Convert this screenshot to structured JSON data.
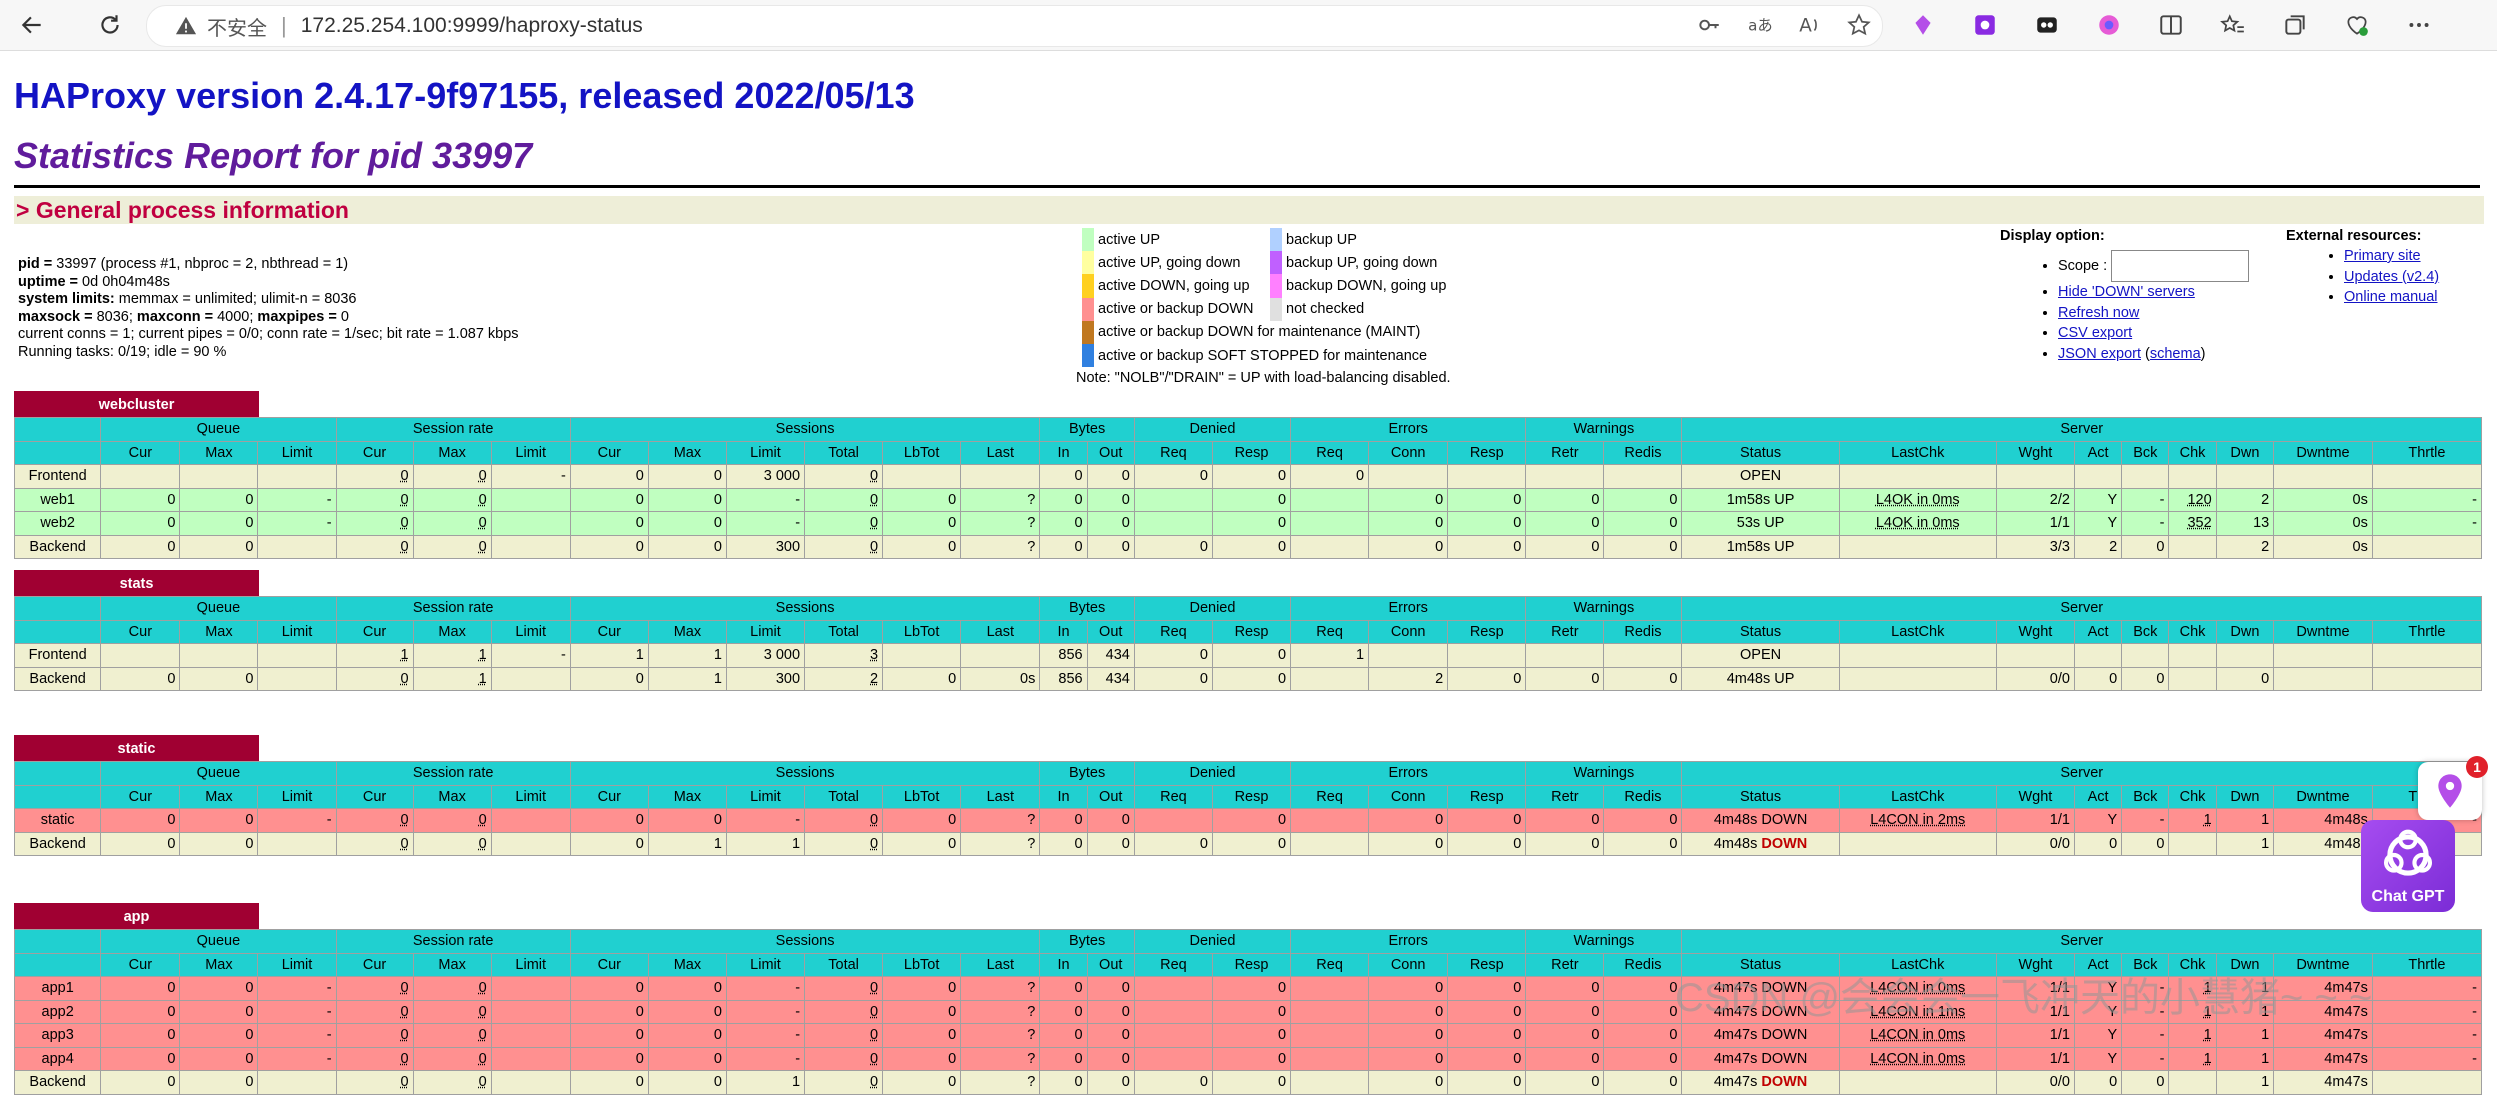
{
  "browser": {
    "insecure_label": "不安全",
    "separator": "|",
    "url": "172.25.254.100:9999/haproxy-status"
  },
  "header": {
    "version": "HAProxy version 2.4.17-9f97155, released 2022/05/13",
    "report": "Statistics Report for pid 33997",
    "section": "> General process information"
  },
  "process_info": [
    {
      "b": "pid =",
      "t": " 33997 (process #1, nbproc = 2, nbthread = 1)"
    },
    {
      "b": "uptime =",
      "t": " 0d 0h04m48s"
    },
    {
      "b": "system limits:",
      "t": " memmax = unlimited; ulimit-n = 8036"
    },
    {
      "b": "maxsock =",
      "t": " 8036; ",
      "b2": "maxconn =",
      "t2": " 4000; ",
      "b3": "maxpipes =",
      "t3": " 0"
    },
    {
      "b": "",
      "t": "current conns = 1; current pipes = 0/0; conn rate = 1/sec; bit rate = 1.087 kbps"
    },
    {
      "b": "",
      "t": "Running tasks: 0/19; idle = 90 %"
    }
  ],
  "legend": {
    "left": [
      {
        "color": "#c0ffc0",
        "label": "active UP"
      },
      {
        "color": "#ffffa0",
        "label": "active UP, going down"
      },
      {
        "color": "#ffd020",
        "label": "active DOWN, going up"
      },
      {
        "color": "#ff9090",
        "label": "active or backup DOWN"
      },
      {
        "color": "#c07820",
        "label": "active or backup DOWN for maintenance (MAINT)"
      },
      {
        "color": "#3080e0",
        "label": "active or backup SOFT STOPPED for maintenance"
      }
    ],
    "right": [
      {
        "color": "#b0d0ff",
        "label": "backup UP"
      },
      {
        "color": "#c060ff",
        "label": "backup UP, going down"
      },
      {
        "color": "#ff80ff",
        "label": "backup DOWN, going up"
      },
      {
        "color": "#e0e0e0",
        "label": "not checked"
      }
    ],
    "note": "Note: \"NOLB\"/\"DRAIN\" = UP with load-balancing disabled."
  },
  "display_options": {
    "title": "Display option:",
    "scope_label": "Scope :",
    "links": [
      "Hide 'DOWN' servers",
      "Refresh now",
      "CSV export"
    ],
    "json_export": "JSON export",
    "schema_open": " (",
    "schema": "schema",
    "schema_close": ")"
  },
  "external": {
    "title": "External resources:",
    "links": [
      "Primary site",
      "Updates (v2.4)",
      "Online manual"
    ]
  },
  "table_headers": {
    "groups": [
      "Queue",
      "Session rate",
      "Sessions",
      "Bytes",
      "Denied",
      "Errors",
      "Warnings",
      "Server"
    ],
    "cols": [
      "Cur",
      "Max",
      "Limit",
      "Cur",
      "Max",
      "Limit",
      "Cur",
      "Max",
      "Limit",
      "Total",
      "LbTot",
      "Last",
      "In",
      "Out",
      "Req",
      "Resp",
      "Req",
      "Conn",
      "Resp",
      "Retr",
      "Redis",
      "Status",
      "LastChk",
      "Wght",
      "Act",
      "Bck",
      "Chk",
      "Dwn",
      "Dwntme",
      "Thrtle"
    ]
  },
  "proxies": [
    {
      "name": "webcluster",
      "rows": [
        {
          "type": "frontend",
          "cells": [
            "Frontend",
            "",
            "",
            "",
            "0",
            "0",
            "-",
            "0",
            "0",
            "3 000",
            "0",
            "",
            "",
            "0",
            "0",
            "0",
            "0",
            "0",
            "",
            "",
            "",
            "",
            "OPEN",
            "",
            "",
            "",
            "",
            "",
            "",
            "",
            ""
          ]
        },
        {
          "type": "up",
          "cells": [
            "web1",
            "0",
            "0",
            "-",
            "0",
            "0",
            "",
            "0",
            "0",
            "-",
            "0",
            "0",
            "?",
            "0",
            "0",
            "",
            "0",
            "",
            "0",
            "0",
            "0",
            "0",
            "1m58s UP",
            "L4OK in 0ms",
            "2/2",
            "Y",
            "-",
            "120",
            "2",
            "0s",
            "-"
          ]
        },
        {
          "type": "up",
          "cells": [
            "web2",
            "0",
            "0",
            "-",
            "0",
            "0",
            "",
            "0",
            "0",
            "-",
            "0",
            "0",
            "?",
            "0",
            "0",
            "",
            "0",
            "",
            "0",
            "0",
            "0",
            "0",
            "53s UP",
            "L4OK in 0ms",
            "1/1",
            "Y",
            "-",
            "352",
            "13",
            "0s",
            "-"
          ]
        },
        {
          "type": "backend",
          "cells": [
            "Backend",
            "0",
            "0",
            "",
            "0",
            "0",
            "",
            "0",
            "0",
            "300",
            "0",
            "0",
            "?",
            "0",
            "0",
            "0",
            "0",
            "",
            "0",
            "0",
            "0",
            "0",
            "1m58s UP",
            "",
            "3/3",
            "2",
            "0",
            "",
            "2",
            "0s",
            ""
          ]
        }
      ]
    },
    {
      "name": "stats",
      "rows": [
        {
          "type": "frontend",
          "cells": [
            "Frontend",
            "",
            "",
            "",
            "1",
            "1",
            "-",
            "1",
            "1",
            "3 000",
            "3",
            "",
            "",
            "856",
            "434",
            "0",
            "0",
            "1",
            "",
            "",
            "",
            "",
            "OPEN",
            "",
            "",
            "",
            "",
            "",
            "",
            "",
            ""
          ]
        },
        {
          "type": "backend",
          "cells": [
            "Backend",
            "0",
            "0",
            "",
            "0",
            "1",
            "",
            "0",
            "1",
            "300",
            "2",
            "0",
            "0s",
            "856",
            "434",
            "0",
            "0",
            "",
            "2",
            "0",
            "0",
            "0",
            "4m48s UP",
            "",
            "0/0",
            "0",
            "0",
            "",
            "0",
            "",
            ""
          ]
        }
      ]
    },
    {
      "name": "static",
      "rows": [
        {
          "type": "down",
          "cells": [
            "static",
            "0",
            "0",
            "-",
            "0",
            "0",
            "",
            "0",
            "0",
            "-",
            "0",
            "0",
            "?",
            "0",
            "0",
            "",
            "0",
            "",
            "0",
            "0",
            "0",
            "0",
            "4m48s DOWN",
            "L4CON in 2ms",
            "1/1",
            "Y",
            "-",
            "1",
            "1",
            "4m48s",
            "-"
          ]
        },
        {
          "type": "backend",
          "cells": [
            "Backend",
            "0",
            "0",
            "",
            "0",
            "0",
            "",
            "0",
            "1",
            "1",
            "0",
            "0",
            "?",
            "0",
            "0",
            "0",
            "0",
            "",
            "0",
            "0",
            "0",
            "0",
            "4m48s DOWN",
            "",
            "0/0",
            "0",
            "0",
            "",
            "1",
            "4m48s",
            ""
          ]
        }
      ]
    },
    {
      "name": "app",
      "rows": [
        {
          "type": "down",
          "cells": [
            "app1",
            "0",
            "0",
            "-",
            "0",
            "0",
            "",
            "0",
            "0",
            "-",
            "0",
            "0",
            "?",
            "0",
            "0",
            "",
            "0",
            "",
            "0",
            "0",
            "0",
            "0",
            "4m47s DOWN",
            "L4CON in 0ms",
            "1/1",
            "Y",
            "-",
            "1",
            "1",
            "4m47s",
            "-"
          ]
        },
        {
          "type": "down",
          "cells": [
            "app2",
            "0",
            "0",
            "-",
            "0",
            "0",
            "",
            "0",
            "0",
            "-",
            "0",
            "0",
            "?",
            "0",
            "0",
            "",
            "0",
            "",
            "0",
            "0",
            "0",
            "0",
            "4m47s DOWN",
            "L4CON in 1ms",
            "1/1",
            "Y",
            "-",
            "1",
            "1",
            "4m47s",
            "-"
          ]
        },
        {
          "type": "down",
          "cells": [
            "app3",
            "0",
            "0",
            "-",
            "0",
            "0",
            "",
            "0",
            "0",
            "-",
            "0",
            "0",
            "?",
            "0",
            "0",
            "",
            "0",
            "",
            "0",
            "0",
            "0",
            "0",
            "4m47s DOWN",
            "L4CON in 0ms",
            "1/1",
            "Y",
            "-",
            "1",
            "1",
            "4m47s",
            "-"
          ]
        },
        {
          "type": "down",
          "cells": [
            "app4",
            "0",
            "0",
            "-",
            "0",
            "0",
            "",
            "0",
            "0",
            "-",
            "0",
            "0",
            "?",
            "0",
            "0",
            "",
            "0",
            "",
            "0",
            "0",
            "0",
            "0",
            "4m47s DOWN",
            "L4CON in 0ms",
            "1/1",
            "Y",
            "-",
            "1",
            "1",
            "4m47s",
            "-"
          ]
        },
        {
          "type": "backend",
          "cells": [
            "Backend",
            "0",
            "0",
            "",
            "0",
            "0",
            "",
            "0",
            "0",
            "1",
            "0",
            "0",
            "?",
            "0",
            "0",
            "0",
            "0",
            "",
            "0",
            "0",
            "0",
            "0",
            "4m47s DOWN",
            "",
            "0/0",
            "0",
            "0",
            "",
            "1",
            "4m47s",
            ""
          ]
        }
      ]
    }
  ],
  "overlays": {
    "badge_count": "1",
    "chatgpt_label": "Chat GPT",
    "watermark": "CSDN @会会会一飞冲天的小慧猪~ ~ ~"
  }
}
